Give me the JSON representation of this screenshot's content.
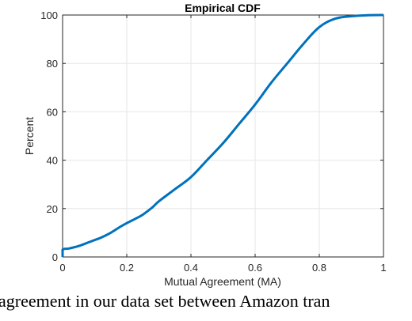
{
  "chart_data": {
    "type": "line",
    "title": "Empirical CDF",
    "xlabel": "Mutual Agreement (MA)",
    "ylabel": "Percent",
    "xlim": [
      0,
      1
    ],
    "ylim": [
      0,
      100
    ],
    "xticks": [
      0,
      0.2,
      0.4,
      0.6,
      0.8,
      1
    ],
    "yticks": [
      0,
      20,
      40,
      60,
      80,
      100
    ],
    "xtick_labels": [
      "0",
      "0.2",
      "0.4",
      "0.6",
      "0.8",
      "1"
    ],
    "ytick_labels": [
      "0",
      "20",
      "40",
      "60",
      "80",
      "100"
    ],
    "grid": true,
    "series": [
      {
        "color": "#0072BD",
        "x": [
          0,
          0,
          0.02,
          0.05,
          0.08,
          0.1,
          0.12,
          0.15,
          0.18,
          0.2,
          0.23,
          0.25,
          0.28,
          0.3,
          0.35,
          0.4,
          0.45,
          0.5,
          0.55,
          0.6,
          0.65,
          0.7,
          0.75,
          0.8,
          0.85,
          0.9,
          0.95,
          1.0
        ],
        "y": [
          0,
          3,
          3.5,
          4.5,
          6,
          7,
          8,
          10,
          12.5,
          14,
          16,
          17.5,
          20.5,
          23,
          28,
          33,
          40,
          47,
          55,
          63,
          72,
          80,
          88,
          95,
          98.5,
          99.5,
          99.9,
          100
        ]
      }
    ]
  },
  "caption": {
    "text": "agreement in our data set between Amazon tran"
  }
}
